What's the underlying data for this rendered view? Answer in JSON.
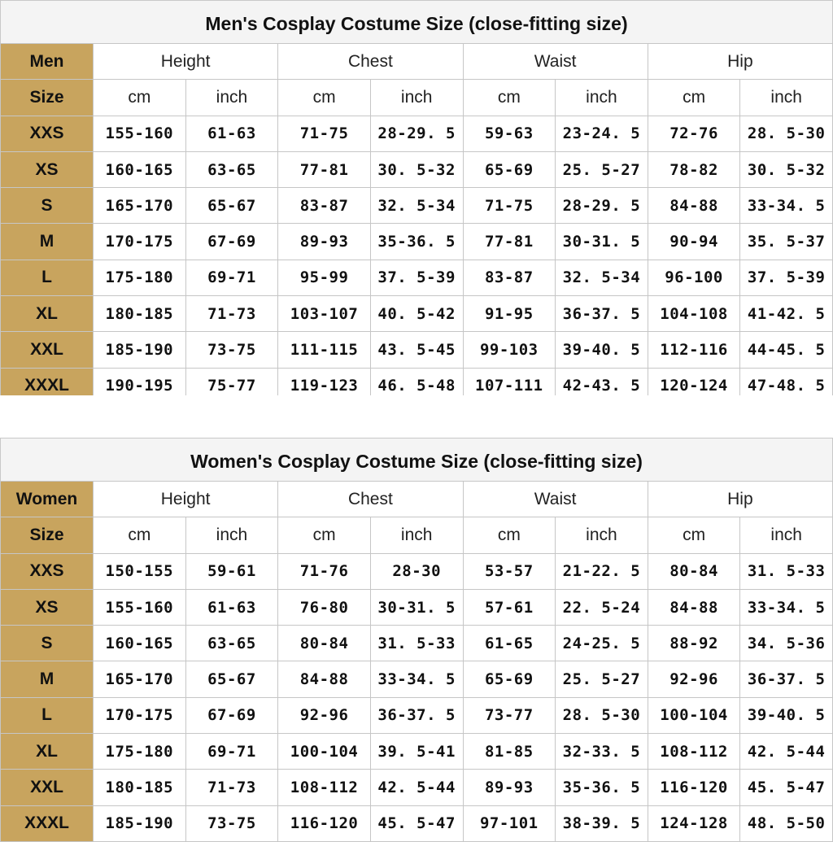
{
  "men": {
    "title": "Men's Cosplay Costume Size (close-fitting size)",
    "corner_label": "Men",
    "size_label": "Size",
    "measures": [
      "Height",
      "Chest",
      "Waist",
      "Hip"
    ],
    "units": [
      "cm",
      "inch",
      "cm",
      "inch",
      "cm",
      "inch",
      "cm",
      "inch"
    ],
    "rows": [
      {
        "size": "XXS",
        "values": [
          "155-160",
          "61-63",
          "71-75",
          "28-29. 5",
          "59-63",
          "23-24. 5",
          "72-76",
          "28. 5-30"
        ]
      },
      {
        "size": "XS",
        "values": [
          "160-165",
          "63-65",
          "77-81",
          "30. 5-32",
          "65-69",
          "25. 5-27",
          "78-82",
          "30. 5-32"
        ]
      },
      {
        "size": "S",
        "values": [
          "165-170",
          "65-67",
          "83-87",
          "32. 5-34",
          "71-75",
          "28-29. 5",
          "84-88",
          "33-34. 5"
        ]
      },
      {
        "size": "M",
        "values": [
          "170-175",
          "67-69",
          "89-93",
          "35-36. 5",
          "77-81",
          "30-31. 5",
          "90-94",
          "35. 5-37"
        ]
      },
      {
        "size": "L",
        "values": [
          "175-180",
          "69-71",
          "95-99",
          "37. 5-39",
          "83-87",
          "32. 5-34",
          "96-100",
          "37. 5-39"
        ]
      },
      {
        "size": "XL",
        "values": [
          "180-185",
          "71-73",
          "103-107",
          "40. 5-42",
          "91-95",
          "36-37. 5",
          "104-108",
          "41-42. 5"
        ]
      },
      {
        "size": "XXL",
        "values": [
          "185-190",
          "73-75",
          "111-115",
          "43. 5-45",
          "99-103",
          "39-40. 5",
          "112-116",
          "44-45. 5"
        ]
      },
      {
        "size": "XXXL",
        "values": [
          "190-195",
          "75-77",
          "119-123",
          "46. 5-48",
          "107-111",
          "42-43. 5",
          "120-124",
          "47-48. 5"
        ]
      }
    ]
  },
  "women": {
    "title": "Women's Cosplay Costume Size (close-fitting size)",
    "corner_label": "Women",
    "size_label": "Size",
    "measures": [
      "Height",
      "Chest",
      "Waist",
      "Hip"
    ],
    "units": [
      "cm",
      "inch",
      "cm",
      "inch",
      "cm",
      "inch",
      "cm",
      "inch"
    ],
    "rows": [
      {
        "size": "XXS",
        "values": [
          "150-155",
          "59-61",
          "71-76",
          "28-30",
          "53-57",
          "21-22. 5",
          "80-84",
          "31. 5-33"
        ]
      },
      {
        "size": "XS",
        "values": [
          "155-160",
          "61-63",
          "76-80",
          "30-31. 5",
          "57-61",
          "22. 5-24",
          "84-88",
          "33-34. 5"
        ]
      },
      {
        "size": "S",
        "values": [
          "160-165",
          "63-65",
          "80-84",
          "31. 5-33",
          "61-65",
          "24-25. 5",
          "88-92",
          "34. 5-36"
        ]
      },
      {
        "size": "M",
        "values": [
          "165-170",
          "65-67",
          "84-88",
          "33-34. 5",
          "65-69",
          "25. 5-27",
          "92-96",
          "36-37. 5"
        ]
      },
      {
        "size": "L",
        "values": [
          "170-175",
          "67-69",
          "92-96",
          "36-37. 5",
          "73-77",
          "28. 5-30",
          "100-104",
          "39-40. 5"
        ]
      },
      {
        "size": "XL",
        "values": [
          "175-180",
          "69-71",
          "100-104",
          "39. 5-41",
          "81-85",
          "32-33. 5",
          "108-112",
          "42. 5-44"
        ]
      },
      {
        "size": "XXL",
        "values": [
          "180-185",
          "71-73",
          "108-112",
          "42. 5-44",
          "89-93",
          "35-36. 5",
          "116-120",
          "45. 5-47"
        ]
      },
      {
        "size": "XXXL",
        "values": [
          "185-190",
          "73-75",
          "116-120",
          "45. 5-47",
          "97-101",
          "38-39. 5",
          "124-128",
          "48. 5-50"
        ]
      }
    ]
  }
}
